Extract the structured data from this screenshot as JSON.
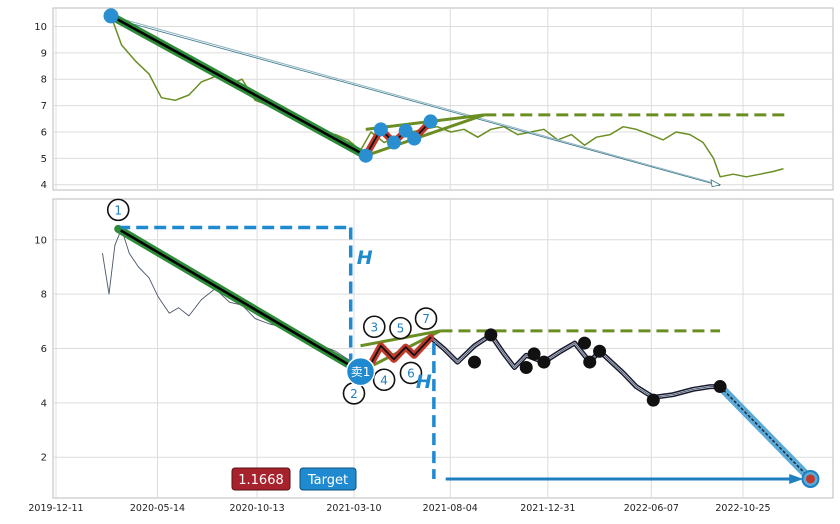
{
  "chart_data": [
    {
      "type": "line",
      "panel": "top",
      "ylim": [
        3.8,
        10.7
      ],
      "y_ticks": [
        4,
        5,
        6,
        7,
        8,
        9,
        10
      ],
      "grid": true,
      "series": [
        {
          "color": "#6b8e23",
          "x": [
            "2020-03-04",
            "2020-03-20",
            "2020-04-10",
            "2020-05-01",
            "2020-05-20",
            "2020-06-10",
            "2020-07-01",
            "2020-07-20",
            "2020-08-10",
            "2020-09-01",
            "2020-09-20",
            "2020-10-10",
            "2020-11-01",
            "2020-11-20",
            "2020-12-10",
            "2021-01-01",
            "2021-01-20",
            "2021-02-10",
            "2021-03-01",
            "2021-03-20",
            "2021-04-05",
            "2021-04-25",
            "2021-05-15",
            "2021-06-05",
            "2021-06-25",
            "2021-07-15",
            "2021-08-05",
            "2021-08-25",
            "2021-09-15",
            "2021-10-05",
            "2021-10-25",
            "2021-11-15",
            "2021-12-05",
            "2021-12-25",
            "2022-01-15",
            "2022-02-05",
            "2022-02-25",
            "2022-03-15",
            "2022-04-05",
            "2022-04-25",
            "2022-05-15",
            "2022-06-05",
            "2022-06-25",
            "2022-07-15",
            "2022-08-05",
            "2022-08-25",
            "2022-09-10",
            "2022-09-20",
            "2022-10-10",
            "2022-10-30",
            "2022-11-20",
            "2022-12-10",
            "2022-12-25"
          ],
          "y": [
            10.4,
            9.3,
            8.7,
            8.2,
            7.3,
            7.2,
            7.4,
            7.9,
            8.1,
            7.8,
            8.0,
            7.2,
            7.0,
            6.8,
            6.5,
            6.2,
            6.0,
            5.9,
            5.7,
            5.3,
            6.0,
            5.6,
            5.8,
            6.0,
            6.1,
            6.2,
            6.0,
            6.1,
            5.8,
            6.1,
            6.2,
            5.9,
            6.0,
            6.1,
            5.7,
            5.9,
            5.5,
            5.8,
            5.9,
            6.2,
            6.1,
            5.9,
            5.7,
            6.0,
            5.9,
            5.6,
            5.0,
            4.3,
            4.4,
            4.3,
            4.4,
            4.5,
            4.6
          ]
        }
      ],
      "annotations": {
        "downtrend": {
          "from": [
            "2020-03-04",
            10.4
          ],
          "to": [
            "2021-03-28",
            5.1
          ],
          "color": "#000000"
        },
        "zigzag_points": [
          {
            "x": "2021-03-28",
            "y": 5.1
          },
          {
            "x": "2021-04-20",
            "y": 6.1
          },
          {
            "x": "2021-05-10",
            "y": 5.6
          },
          {
            "x": "2021-05-28",
            "y": 6.05
          },
          {
            "x": "2021-06-10",
            "y": 5.75
          },
          {
            "x": "2021-07-05",
            "y": 6.4
          }
        ],
        "projection_arrow": {
          "from": [
            "2020-03-04",
            10.4
          ],
          "to": [
            "2022-09-20",
            4.0
          ]
        },
        "dashed_level": {
          "from": "2021-09-25",
          "to": "2022-12-28",
          "y": 6.65
        },
        "wedge": {
          "upper": [
            [
              "2021-03-28",
              6.1
            ],
            [
              "2021-09-25",
              6.65
            ]
          ],
          "lower": [
            [
              "2021-03-28",
              5.1
            ],
            [
              "2021-09-25",
              6.65
            ]
          ]
        }
      }
    },
    {
      "type": "line",
      "panel": "bottom",
      "ylim": [
        0.5,
        11.5
      ],
      "y_ticks": [
        2,
        4,
        6,
        8,
        10
      ],
      "x_ticks": [
        "2019-12-11",
        "2020-05-14",
        "2020-10-13",
        "2021-03-10",
        "2021-08-04",
        "2021-12-31",
        "2022-06-07",
        "2022-10-25"
      ],
      "grid": true,
      "series": [
        {
          "color": "#4a5568",
          "x": [
            "2020-02-20",
            "2020-03-01",
            "2020-03-10",
            "2020-03-20",
            "2020-04-01",
            "2020-04-15",
            "2020-05-01",
            "2020-05-15",
            "2020-06-01",
            "2020-06-15",
            "2020-07-01",
            "2020-07-20",
            "2020-08-10",
            "2020-09-01",
            "2020-09-20",
            "2020-10-10",
            "2020-11-01",
            "2020-11-20",
            "2020-12-10",
            "2021-01-01",
            "2021-01-20",
            "2021-02-10",
            "2021-03-01",
            "2021-03-15"
          ],
          "y": [
            9.5,
            8.0,
            9.8,
            10.4,
            9.5,
            9.0,
            8.6,
            7.9,
            7.3,
            7.5,
            7.2,
            7.8,
            8.2,
            7.7,
            7.6,
            7.1,
            6.9,
            6.8,
            6.6,
            6.4,
            6.1,
            5.9,
            5.6,
            5.3
          ]
        },
        {
          "color": "#4a5568",
          "x": [
            "2021-03-28",
            "2021-04-20",
            "2021-05-10",
            "2021-05-28",
            "2021-06-10",
            "2021-07-05",
            "2021-07-25",
            "2021-08-15",
            "2021-09-10",
            "2021-10-05",
            "2021-10-25",
            "2021-11-10",
            "2021-11-28",
            "2021-12-25",
            "2022-01-20",
            "2022-02-10",
            "2022-03-05",
            "2022-03-20",
            "2022-04-25",
            "2022-05-15",
            "2022-06-10",
            "2022-07-10",
            "2022-08-10",
            "2022-09-05",
            "2022-09-20"
          ],
          "y": [
            5.1,
            6.1,
            5.6,
            6.05,
            5.75,
            6.4,
            6.0,
            5.5,
            6.1,
            6.5,
            5.8,
            5.3,
            5.75,
            5.5,
            5.9,
            6.2,
            5.5,
            5.9,
            5.1,
            4.6,
            4.2,
            4.3,
            4.5,
            4.6,
            4.6
          ]
        }
      ],
      "markers": [
        {
          "x": "2021-10-05",
          "y": 6.5
        },
        {
          "x": "2021-09-10",
          "y": 5.5
        },
        {
          "x": "2021-11-28",
          "y": 5.3
        },
        {
          "x": "2021-12-10",
          "y": 5.8
        },
        {
          "x": "2021-12-25",
          "y": 5.5
        },
        {
          "x": "2022-02-25",
          "y": 6.2
        },
        {
          "x": "2022-03-05",
          "y": 5.5
        },
        {
          "x": "2022-03-20",
          "y": 5.9
        },
        {
          "x": "2022-06-10",
          "y": 4.1
        },
        {
          "x": "2022-09-20",
          "y": 4.6
        }
      ],
      "target_line": {
        "from": [
          "2022-09-20",
          4.6
        ],
        "to": [
          "2023-02-05",
          1.2
        ]
      },
      "target_point": {
        "x": "2023-02-05",
        "y": 1.2
      },
      "downtrend": {
        "from": [
          "2020-03-15",
          10.4
        ],
        "to": [
          "2021-03-20",
          5.15
        ]
      },
      "wedge": {
        "upper": [
          [
            "2021-03-20",
            6.1
          ],
          [
            "2021-07-20",
            6.65
          ]
        ],
        "lower": [
          [
            "2021-03-20",
            5.15
          ],
          [
            "2021-07-20",
            6.65
          ]
        ]
      },
      "dashed_level": {
        "from": "2021-07-20",
        "to": "2022-09-20",
        "y": 6.65
      },
      "h_guides": [
        {
          "x": "2021-03-05",
          "top_y": 10.45,
          "bottom_y": 5.15,
          "start_x": "2020-03-15"
        },
        {
          "x": "2021-07-10",
          "top_y": 6.2,
          "bottom_y": 1.2
        }
      ],
      "target_arrow": {
        "from": "2021-07-28",
        "to": "2023-01-25",
        "y": 1.2
      },
      "point_labels": [
        {
          "label": "1",
          "x": "2020-03-15",
          "y": 11.1
        },
        {
          "label": "2",
          "x": "2021-03-10",
          "y": 4.35
        },
        {
          "label": "3",
          "x": "2021-04-10",
          "y": 6.8
        },
        {
          "label": "4",
          "x": "2021-04-25",
          "y": 4.85
        },
        {
          "label": "5",
          "x": "2021-05-20",
          "y": 6.75
        },
        {
          "label": "6",
          "x": "2021-06-05",
          "y": 5.1
        },
        {
          "label": "7",
          "x": "2021-06-28",
          "y": 7.1
        }
      ],
      "sell_label": "卖1",
      "h_label_1": "H",
      "h_label_2": "H",
      "ratio_badge": "1.1668",
      "target_badge": "Target"
    }
  ]
}
